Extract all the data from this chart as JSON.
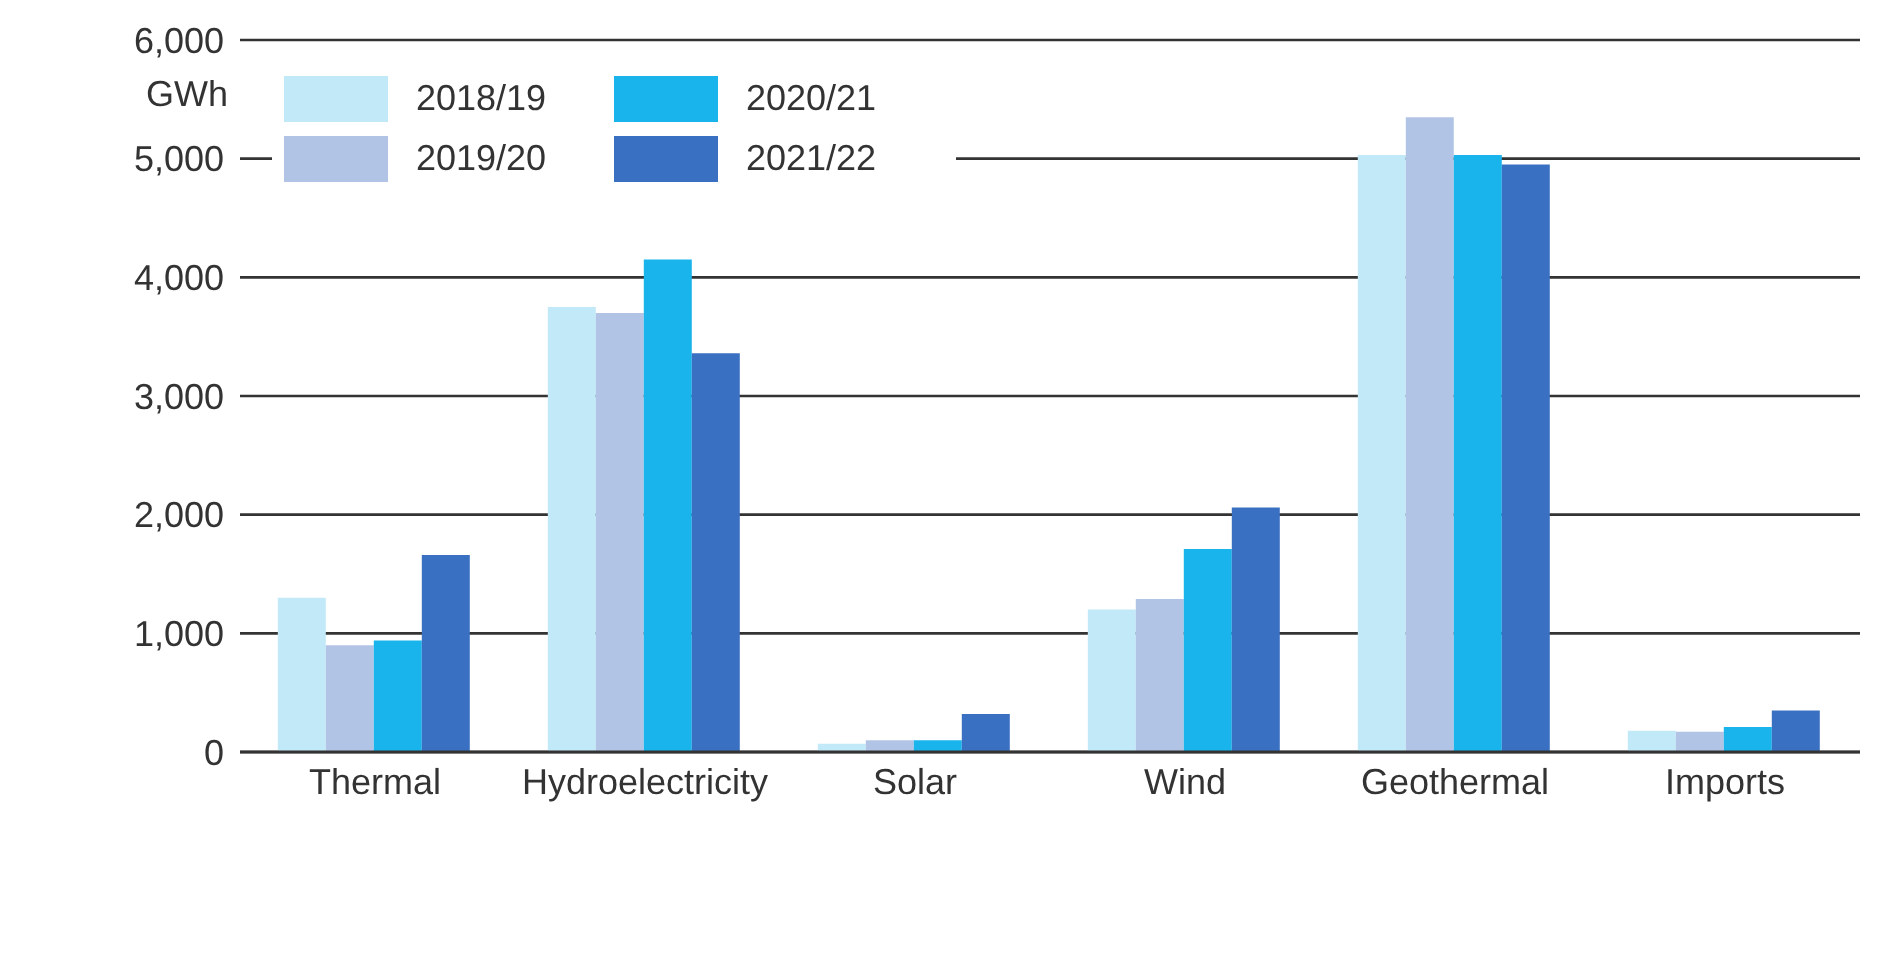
{
  "chart_data": {
    "type": "bar",
    "ylabel": "GWh",
    "categories": [
      "Thermal",
      "Hydroelectricity",
      "Solar",
      "Wind",
      "Geothermal",
      "Imports"
    ],
    "series": [
      {
        "name": "2018/19",
        "color": "#c2e9f8",
        "values": [
          1300,
          3750,
          70,
          1200,
          5030,
          180
        ]
      },
      {
        "name": "2019/20",
        "color": "#b2c4e6",
        "values": [
          900,
          3700,
          100,
          1290,
          5350,
          170
        ]
      },
      {
        "name": "2020/21",
        "color": "#1ab4ec",
        "values": [
          940,
          4150,
          100,
          1710,
          5030,
          210
        ]
      },
      {
        "name": "2021/22",
        "color": "#3a70c2",
        "values": [
          1660,
          3360,
          320,
          2060,
          4950,
          350
        ]
      }
    ],
    "ylim": [
      0,
      6000
    ],
    "yticks": [
      0,
      {
        "value": 1000,
        "label": "1,000"
      },
      {
        "value": 2000,
        "label": "2,000"
      },
      {
        "value": 3000,
        "label": "3,000"
      },
      {
        "value": 4000,
        "label": "4,000"
      },
      {
        "value": 5000,
        "label": "5,000"
      },
      {
        "value": 6000,
        "label": "6,000"
      }
    ],
    "grid": "y",
    "legend": "top left"
  }
}
